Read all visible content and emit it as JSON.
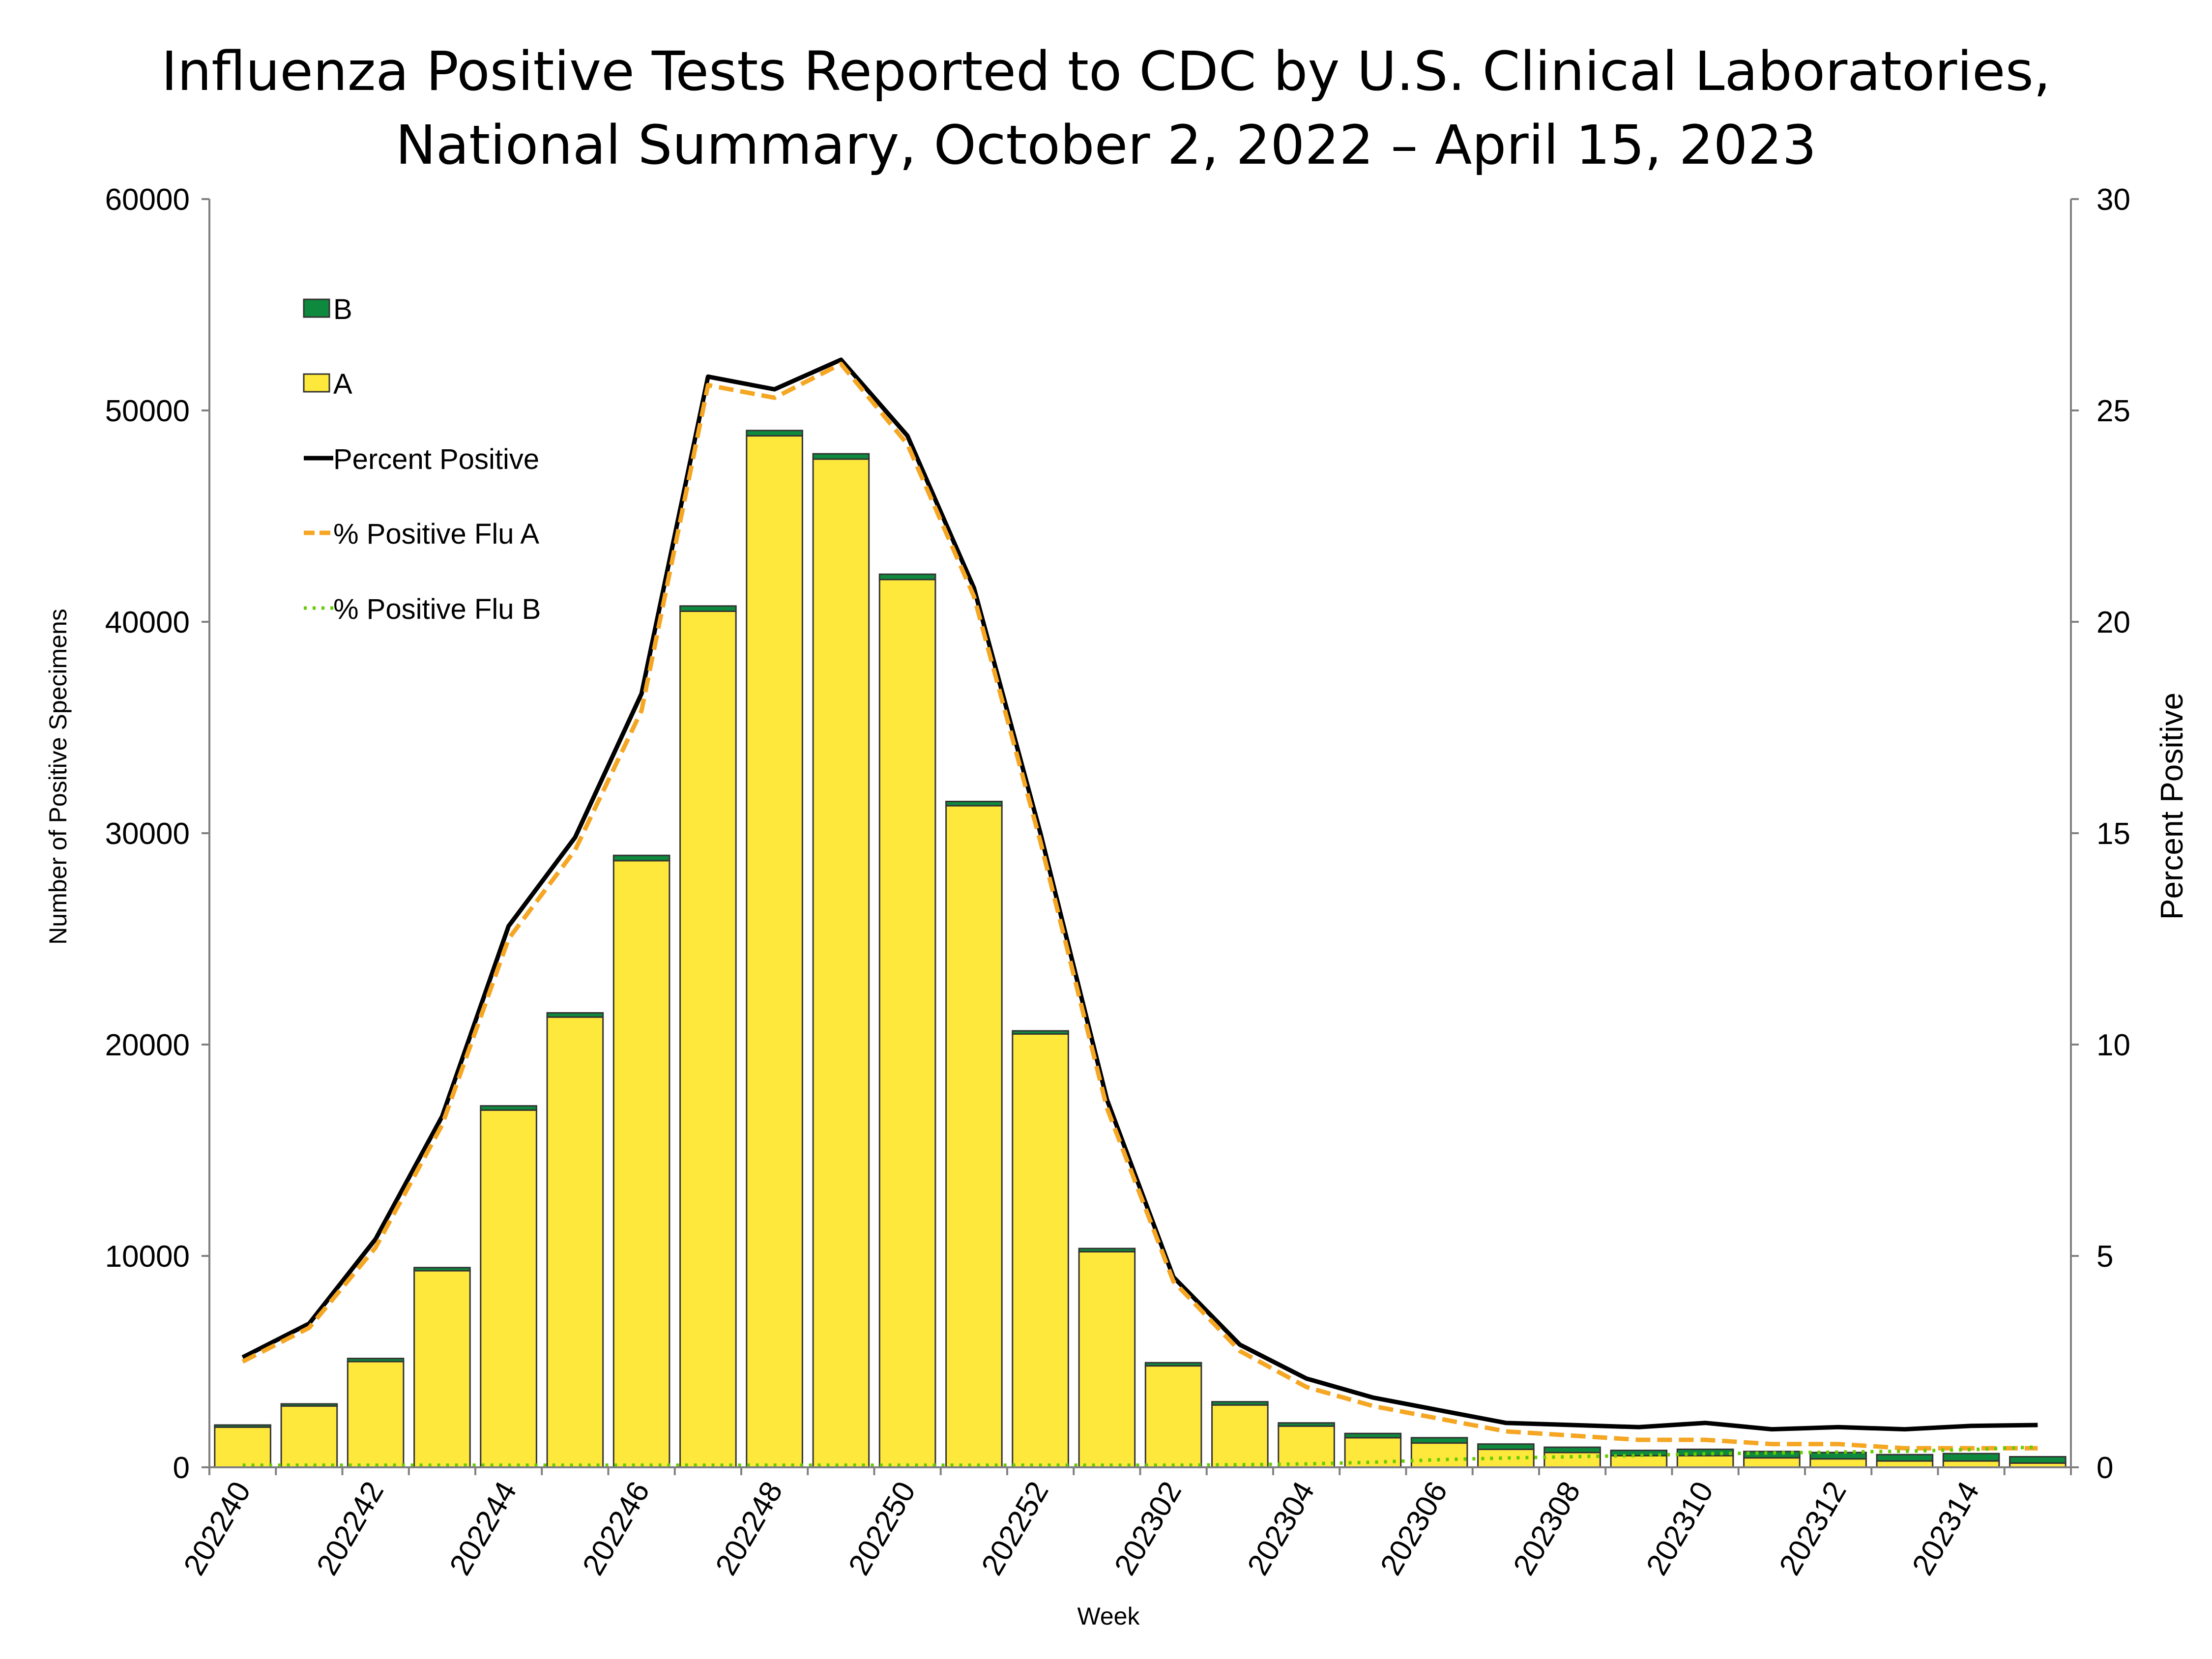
{
  "chart_data": {
    "type": "bar",
    "title": [
      "Influenza Positive Tests Reported to CDC by U.S. Clinical Laboratories,",
      "National Summary, October 2, 2022 – April 15, 2023"
    ],
    "xlabel": "Week",
    "ylabel": "Number of Positive Specimens",
    "y2label": "Percent Positive",
    "ylim": [
      0,
      60000
    ],
    "y2lim": [
      0,
      30
    ],
    "yticks": [
      "0",
      "10000",
      "20000",
      "30000",
      "40000",
      "50000",
      "60000"
    ],
    "y2ticks": [
      "0",
      "5",
      "10",
      "15",
      "20",
      "25",
      "30"
    ],
    "categories": [
      "202240",
      "202241",
      "202242",
      "202243",
      "202244",
      "202245",
      "202246",
      "202247",
      "202248",
      "202249",
      "202250",
      "202251",
      "202252",
      "202301",
      "202302",
      "202303",
      "202304",
      "202305",
      "202306",
      "202307",
      "202308",
      "202309",
      "202310",
      "202311",
      "202312",
      "202313",
      "202314",
      "202315"
    ],
    "xtick_labels": [
      "202240",
      "202242",
      "202244",
      "202246",
      "202248",
      "202250",
      "202252",
      "202302",
      "202304",
      "202306",
      "202308",
      "202310",
      "202312",
      "202314"
    ],
    "stacked": true,
    "series": [
      {
        "name": "A",
        "kind": "bar",
        "color": "#FFE83C",
        "values": [
          1900,
          2900,
          5000,
          9300,
          16900,
          21300,
          28700,
          40500,
          48800,
          47700,
          42000,
          31300,
          20500,
          10200,
          4800,
          2950,
          1950,
          1400,
          1150,
          850,
          700,
          550,
          550,
          450,
          400,
          300,
          300,
          200
        ]
      },
      {
        "name": "B",
        "kind": "bar",
        "color": "#0E8A3E",
        "values": [
          100,
          100,
          150,
          150,
          200,
          200,
          250,
          250,
          250,
          250,
          250,
          200,
          150,
          150,
          150,
          150,
          150,
          200,
          250,
          250,
          250,
          250,
          300,
          300,
          300,
          300,
          350,
          300
        ]
      },
      {
        "name": "Percent Positive",
        "kind": "line",
        "axis": "right",
        "color": "#000000",
        "style": "solid",
        "values": [
          2.6,
          3.4,
          5.4,
          8.3,
          12.8,
          14.9,
          18.3,
          25.8,
          25.5,
          26.2,
          24.4,
          20.8,
          15.0,
          8.7,
          4.5,
          2.9,
          2.1,
          1.65,
          1.35,
          1.05,
          1.0,
          0.95,
          1.05,
          0.9,
          0.95,
          0.9,
          0.98,
          1.0
        ]
      },
      {
        "name": "% Positive Flu A",
        "kind": "line",
        "axis": "right",
        "color": "#F5A623",
        "style": "dashed",
        "values": [
          2.5,
          3.3,
          5.2,
          8.1,
          12.5,
          14.6,
          17.9,
          25.6,
          25.3,
          26.1,
          24.2,
          20.6,
          14.8,
          8.5,
          4.4,
          2.75,
          1.9,
          1.45,
          1.15,
          0.85,
          0.75,
          0.65,
          0.65,
          0.55,
          0.55,
          0.45,
          0.45,
          0.45
        ]
      },
      {
        "name": "% Positive Flu B",
        "kind": "line",
        "axis": "right",
        "color": "#66CC00",
        "style": "dotted",
        "values": [
          0.05,
          0.05,
          0.05,
          0.05,
          0.05,
          0.05,
          0.05,
          0.05,
          0.05,
          0.05,
          0.05,
          0.05,
          0.05,
          0.05,
          0.05,
          0.06,
          0.08,
          0.12,
          0.18,
          0.22,
          0.25,
          0.28,
          0.32,
          0.34,
          0.36,
          0.38,
          0.42,
          0.48
        ]
      }
    ],
    "legend": {
      "position": "top-left",
      "entries": [
        "B",
        "A",
        "Percent Positive",
        "% Positive Flu A",
        "% Positive Flu B"
      ]
    },
    "grid": false
  }
}
